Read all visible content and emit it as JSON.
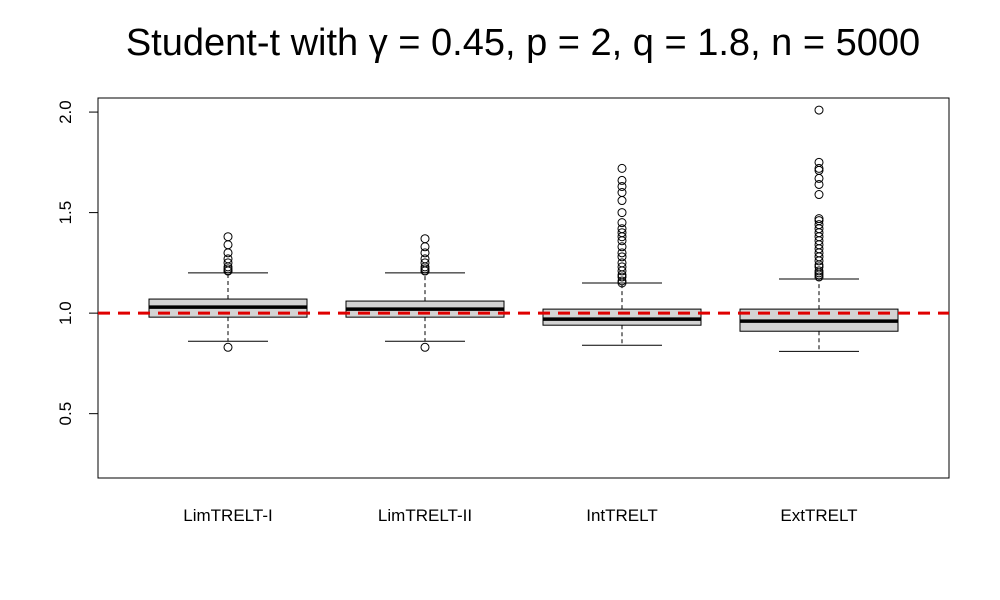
{
  "chart_data": {
    "type": "boxplot",
    "title": "Student-t with γ = 0.45, p = 2, q = 1.8, n = 5000",
    "xlabel": "",
    "ylabel": "",
    "ylim": [
      0.18,
      2.07
    ],
    "yticks": [
      "0.5",
      "1.0",
      "1.5",
      "2.0"
    ],
    "ytick_values": [
      0.5,
      1.0,
      1.5,
      2.0
    ],
    "reference_line": {
      "y": 1.0,
      "color": "#e00000",
      "style": "dashed"
    },
    "box_fill": "#d3d3d3",
    "categories": [
      "LimTRELT-I",
      "LimTRELT-II",
      "IntTRELT",
      "ExtTRELT"
    ],
    "boxes": [
      {
        "name": "LimTRELT-I",
        "whisker_low": 0.86,
        "q1": 0.98,
        "median": 1.03,
        "q3": 1.07,
        "whisker_high": 1.2,
        "outliers": [
          0.83,
          1.21,
          1.21,
          1.22,
          1.23,
          1.25,
          1.27,
          1.3,
          1.34,
          1.38
        ]
      },
      {
        "name": "LimTRELT-II",
        "whisker_low": 0.86,
        "q1": 0.98,
        "median": 1.02,
        "q3": 1.06,
        "whisker_high": 1.2,
        "outliers": [
          0.83,
          1.21,
          1.21,
          1.22,
          1.23,
          1.25,
          1.27,
          1.3,
          1.33,
          1.37
        ]
      },
      {
        "name": "IntTRELT",
        "whisker_low": 0.84,
        "q1": 0.94,
        "median": 0.97,
        "q3": 1.02,
        "whisker_high": 1.15,
        "outliers": [
          1.15,
          1.16,
          1.18,
          1.19,
          1.21,
          1.23,
          1.25,
          1.28,
          1.3,
          1.33,
          1.36,
          1.38,
          1.4,
          1.42,
          1.45,
          1.5,
          1.56,
          1.6,
          1.63,
          1.66,
          1.72
        ]
      },
      {
        "name": "ExtTRELT",
        "whisker_low": 0.81,
        "q1": 0.91,
        "median": 0.96,
        "q3": 1.02,
        "whisker_high": 1.17,
        "outliers": [
          1.18,
          1.19,
          1.2,
          1.21,
          1.23,
          1.24,
          1.26,
          1.28,
          1.3,
          1.32,
          1.34,
          1.36,
          1.38,
          1.4,
          1.42,
          1.44,
          1.46,
          1.47,
          1.59,
          1.64,
          1.67,
          1.71,
          1.72,
          1.75,
          2.01
        ]
      }
    ]
  }
}
